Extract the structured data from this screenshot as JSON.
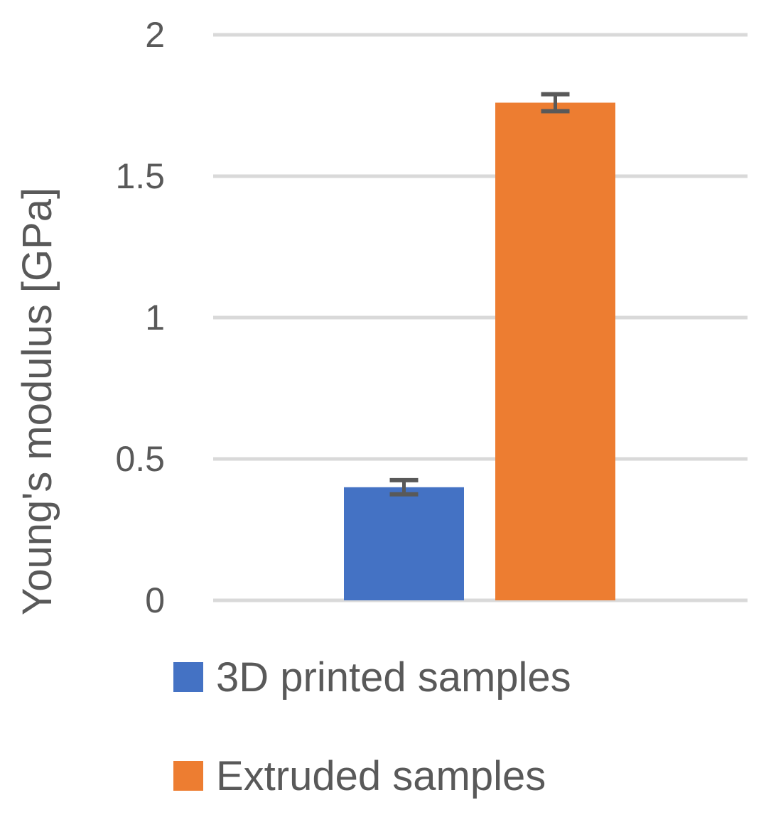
{
  "chart_data": {
    "type": "bar",
    "title": "",
    "xlabel": "",
    "ylabel": "Young's modulus [GPa]",
    "ylim": [
      0,
      2
    ],
    "yticks": [
      "0",
      "0.5",
      "1",
      "1.5",
      "2"
    ],
    "grid": true,
    "legend_position": "bottom",
    "series": [
      {
        "name": "3D printed samples",
        "value": 0.4,
        "error": 0.025,
        "color": "#4472C4"
      },
      {
        "name": "Extruded samples",
        "value": 1.76,
        "error": 0.03,
        "color": "#ED7D31"
      }
    ]
  }
}
